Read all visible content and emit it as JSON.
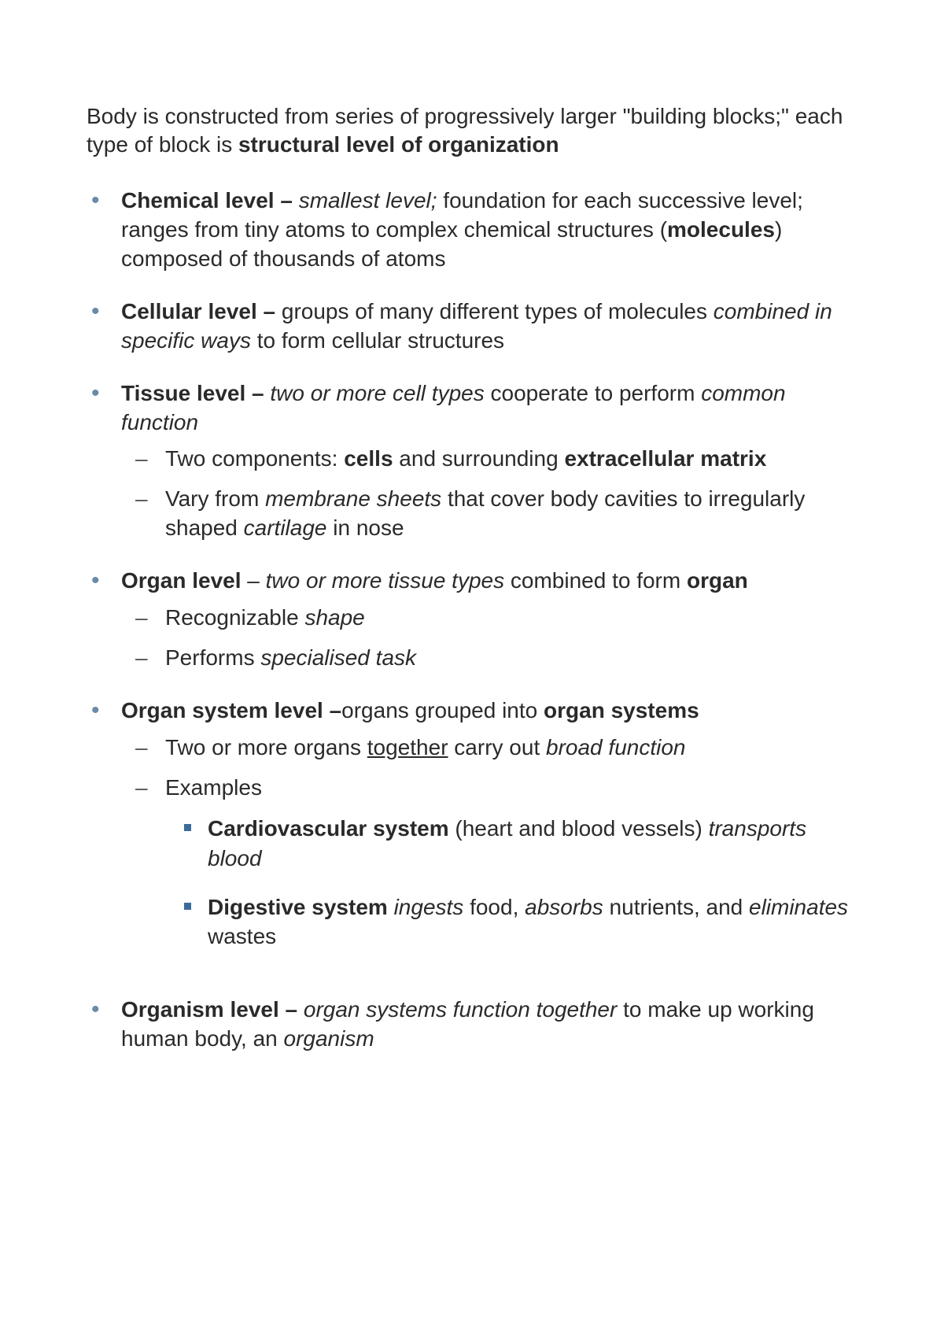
{
  "colors": {
    "text": "#2a2a2a",
    "bullet_l1": "#6b8aa8",
    "bullet_l2": "#555555",
    "bullet_l3": "#3b6b9a",
    "background": "#ffffff"
  },
  "typography": {
    "font_family": "Arial",
    "base_size_pt": 21,
    "line_height": 1.32
  },
  "intro": {
    "t1": "Body is constructed from series of progressively larger \"building blocks;\" each type of block is ",
    "t2": "structural level of organization"
  },
  "items": {
    "chemical": {
      "t1": "Chemical level – ",
      "t2": "smallest level;",
      "t3": " foundation for each successive level; ranges from tiny atoms to complex chemical structures (",
      "t4": "molecules",
      "t5": ") composed of thousands of atoms"
    },
    "cellular": {
      "t1": "Cellular level – ",
      "t2": "groups of many different types of molecules ",
      "t3": "combined in specific ways",
      "t4": " to form cellular structures"
    },
    "tissue": {
      "t1": "Tissue level – ",
      "t2": "two or more cell types",
      "t3": " cooperate to perform ",
      "t4": "common function",
      "sub1": {
        "a": "Two components: ",
        "b": "cells",
        "c": " and surrounding ",
        "d": "extracellular matrix"
      },
      "sub2": {
        "a": "Vary from ",
        "b": "membrane sheets",
        "c": " that cover body cavities to irregularly shaped ",
        "d": "cartilage",
        "e": " in nose"
      }
    },
    "organ": {
      "t1": "Organ level",
      "t2": " – ",
      "t3": "two or more tissue types",
      "t4": " combined to form ",
      "t5": "organ",
      "sub1": {
        "a": "Recognizable ",
        "b": "shape"
      },
      "sub2": {
        "a": "Performs ",
        "b": "specialised task"
      }
    },
    "system": {
      "t1": "Organ system level –",
      "t2": "organs grouped into ",
      "t3": "organ systems",
      "sub1": {
        "a": "Two or more organs ",
        "b": "together",
        "c": " carry out ",
        "d": "broad function"
      },
      "sub2": {
        "a": "Examples"
      },
      "ex1": {
        "a": "Cardiovascular system",
        "b": " (heart and blood vessels) ",
        "c": "transports blood"
      },
      "ex2": {
        "a": "Digestive system",
        "b": " ",
        "c": "ingests",
        "d": " food, ",
        "e": "absorbs",
        "f": " nutrients, and ",
        "g": "eliminates",
        "h": " wastes"
      }
    },
    "organism": {
      "t1": "Organism level – ",
      "t2": "organ systems function together",
      "t3": " to make up working human body, an ",
      "t4": "organism"
    }
  }
}
